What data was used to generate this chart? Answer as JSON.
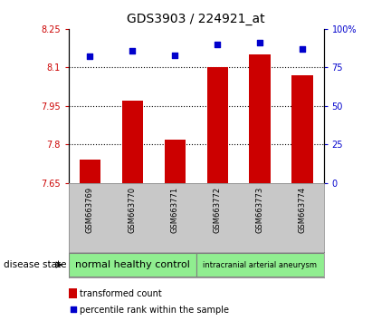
{
  "title": "GDS3903 / 224921_at",
  "samples": [
    "GSM663769",
    "GSM663770",
    "GSM663771",
    "GSM663772",
    "GSM663773",
    "GSM663774"
  ],
  "bar_values": [
    7.74,
    7.97,
    7.82,
    8.1,
    8.15,
    8.07
  ],
  "dot_values": [
    82,
    86,
    83,
    90,
    91,
    87
  ],
  "y_min": 7.65,
  "y_max": 8.25,
  "y_ticks": [
    7.65,
    7.8,
    7.95,
    8.1,
    8.25
  ],
  "y_tick_labels": [
    "7.65",
    "7.8",
    "7.95",
    "8.1",
    "8.25"
  ],
  "y2_ticks": [
    0,
    25,
    50,
    75,
    100
  ],
  "y2_tick_labels": [
    "0",
    "25",
    "50",
    "75",
    "100%"
  ],
  "bar_color": "#cc0000",
  "dot_color": "#0000cc",
  "bar_bottom": 7.65,
  "group1_label": "normal healthy control",
  "group2_label": "intracranial arterial aneurysm",
  "group_color": "#90ee90",
  "disease_state_label": "disease state",
  "legend_bar_label": "transformed count",
  "legend_dot_label": "percentile rank within the sample",
  "sample_bg_color": "#c8c8c8",
  "plot_bg": "#ffffff",
  "title_fontsize": 10,
  "tick_fontsize": 7,
  "sample_fontsize": 6,
  "group_fontsize1": 8,
  "group_fontsize2": 6,
  "legend_fontsize": 7,
  "left_tick_color": "#cc0000",
  "right_tick_color": "#0000cc",
  "hgrid_ticks": [
    7.8,
    7.95,
    8.1
  ]
}
